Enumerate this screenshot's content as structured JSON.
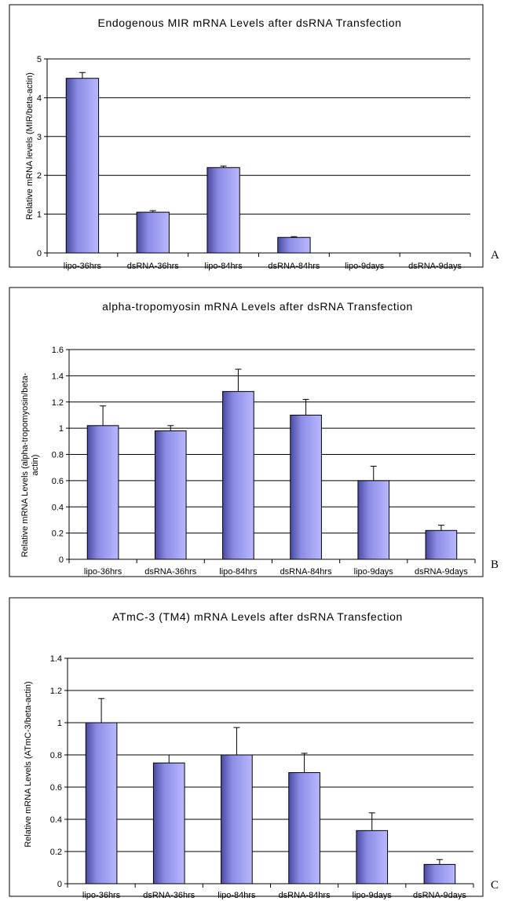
{
  "chart_data": [
    {
      "type": "bar",
      "panel_label": "A",
      "title": "Endogenous MIR mRNA Levels after dsRNA Transfection",
      "ylabel": "Relative mRNA levels (MIR/beta-actin)",
      "xlabel": "",
      "categories": [
        "lipo-36hrs",
        "dsRNA-36hrs",
        "lipo-84hrs",
        "dsRNA-84hrs",
        "lipo-9days",
        "dsRNA-9days"
      ],
      "values": [
        4.5,
        1.05,
        2.2,
        0.4,
        0,
        0
      ],
      "errors": [
        0.15,
        0.04,
        0.04,
        0.02,
        0,
        0
      ],
      "ylim": [
        0,
        5
      ],
      "yticks": [
        "0",
        "1",
        "2",
        "3",
        "4",
        "5"
      ],
      "grid": true,
      "bar_color": "#8b8be8"
    },
    {
      "type": "bar",
      "panel_label": "B",
      "title": "alpha-tropomyosin mRNA Levels after dsRNA Transfection",
      "ylabel": "Relative mRNA Levels (alpha-tropomyosin/beta-actin)",
      "xlabel": "",
      "categories": [
        "lipo-36hrs",
        "dsRNA-36hrs",
        "lipo-84hrs",
        "dsRNA-84hrs",
        "lipo-9days",
        "dsRNA-9days"
      ],
      "values": [
        1.02,
        0.98,
        1.28,
        1.1,
        0.6,
        0.22
      ],
      "errors": [
        0.15,
        0.04,
        0.17,
        0.12,
        0.11,
        0.04
      ],
      "ylim": [
        0,
        1.6
      ],
      "yticks": [
        "0",
        "0.2",
        "0.4",
        "0.6",
        "0.8",
        "1",
        "1.2",
        "1.4",
        "1.6"
      ],
      "grid": true,
      "bar_color": "#8b8be8"
    },
    {
      "type": "bar",
      "panel_label": "C",
      "title": "ATmC-3 (TM4) mRNA Levels after dsRNA Transfection",
      "ylabel": "Relative mRNA Levels (ATmC-3/beta-actin)",
      "xlabel": "",
      "categories": [
        "lipo-36hrs",
        "dsRNA-36hrs",
        "lipo-84hrs",
        "dsRNA-84hrs",
        "lipo-9days",
        "dsRNA-9days"
      ],
      "values": [
        1.0,
        0.75,
        0.8,
        0.69,
        0.33,
        0.12
      ],
      "errors": [
        0.15,
        0.05,
        0.17,
        0.12,
        0.11,
        0.03
      ],
      "ylim": [
        0,
        1.4
      ],
      "yticks": [
        "0",
        "0.2",
        "0.4",
        "0.6",
        "0.8",
        "1",
        "1.2",
        "1.4"
      ],
      "grid": true,
      "bar_color": "#8b8be8"
    }
  ]
}
